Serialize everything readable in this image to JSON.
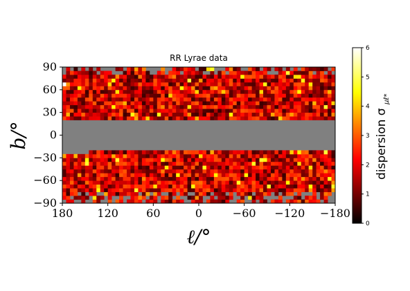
{
  "chart_data": {
    "type": "heatmap",
    "title": "RR Lyrae data",
    "xlabel": "ℓ/°",
    "ylabel": "b/°",
    "x_ticks": [
      {
        "value": 180,
        "label": "180"
      },
      {
        "value": 120,
        "label": "120"
      },
      {
        "value": 60,
        "label": "60"
      },
      {
        "value": 0,
        "label": "0"
      },
      {
        "value": -60,
        "label": "−60"
      },
      {
        "value": -120,
        "label": "−120"
      },
      {
        "value": -180,
        "label": "−180"
      }
    ],
    "y_ticks": [
      {
        "value": 90,
        "label": "90"
      },
      {
        "value": 60,
        "label": "60"
      },
      {
        "value": 30,
        "label": "30"
      },
      {
        "value": 0,
        "label": "0"
      },
      {
        "value": -30,
        "label": "−30"
      },
      {
        "value": -60,
        "label": "−60"
      },
      {
        "value": -90,
        "label": "−90"
      }
    ],
    "xlim": [
      180,
      -180
    ],
    "ylim": [
      -90,
      90
    ],
    "grid": false,
    "background_color": "#808080",
    "colormap": "hot",
    "colorbar": {
      "label": "dispersion σ",
      "label_subscript": "μℓ*",
      "range": [
        0,
        6
      ],
      "ticks": [
        {
          "value": 0,
          "label": "0"
        },
        {
          "value": 1,
          "label": "1"
        },
        {
          "value": 2,
          "label": "2"
        },
        {
          "value": 3,
          "label": "3"
        },
        {
          "value": 4,
          "label": "4"
        },
        {
          "value": 5,
          "label": "5"
        },
        {
          "value": 6,
          "label": "6"
        }
      ]
    },
    "bins": {
      "l_step_deg": 5,
      "b_step_deg": 5,
      "north_b_range": [
        20,
        90
      ],
      "south_b_range": [
        -90,
        -20
      ],
      "masked_b_range": [
        -20,
        20
      ],
      "typical_value_range": [
        0.5,
        3.0
      ],
      "max_observed_value": 6
    }
  }
}
